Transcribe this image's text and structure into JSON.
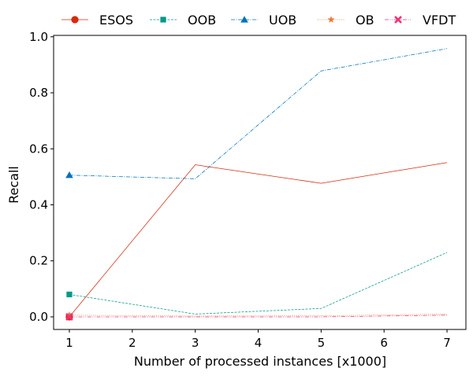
{
  "chart_data": {
    "type": "line",
    "title": "",
    "xlabel": "Number of processed instances [x1000]",
    "ylabel": "Recall",
    "xlim": [
      0.75,
      7.3
    ],
    "ylim": [
      -0.045,
      1.005
    ],
    "xticks": [
      1,
      2,
      3,
      4,
      5,
      6,
      7
    ],
    "yticks": [
      0.0,
      0.2,
      0.4,
      0.6,
      0.8,
      1.0
    ],
    "x": [
      1,
      3,
      5,
      7
    ],
    "grid": false,
    "legend_position": "top, above plot",
    "series": [
      {
        "name": "ESOS",
        "color": "#d62a0c",
        "marker": "circle",
        "dash": "solid",
        "values": [
          0.0,
          0.543,
          0.477,
          0.551
        ]
      },
      {
        "name": "OOB",
        "color": "#009988",
        "marker": "square",
        "dash": "dashed",
        "values": [
          0.08,
          0.01,
          0.03,
          0.23
        ]
      },
      {
        "name": "UOB",
        "color": "#0072bd",
        "marker": "triangle",
        "dash": "dashdot",
        "values": [
          0.506,
          0.493,
          0.878,
          0.958
        ]
      },
      {
        "name": "OB",
        "color": "#ee7733",
        "marker": "star",
        "dash": "dotted",
        "values": [
          0.006,
          0.003,
          0.004,
          0.01
        ]
      },
      {
        "name": "VFDT",
        "color": "#ee3377",
        "marker": "x-filled",
        "dash": "dashdotdot",
        "values": [
          0.0,
          0.0,
          0.0,
          0.006
        ]
      }
    ]
  }
}
